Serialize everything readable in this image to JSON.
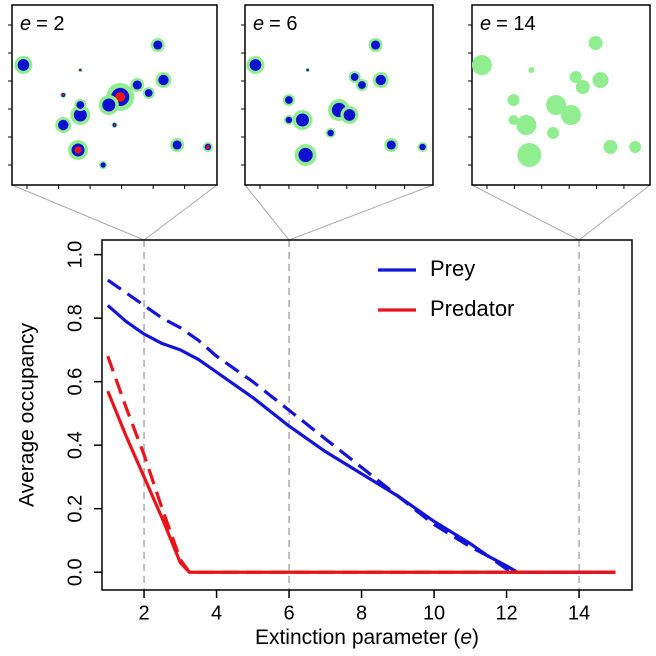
{
  "chart_data": {
    "type": "line",
    "xlabel_parts": [
      "Extinction parameter (",
      "e",
      ")"
    ],
    "ylabel": "Average occupancy",
    "x": [
      1,
      1.5,
      2,
      2.5,
      3,
      3.25,
      3.5,
      4,
      5,
      6,
      7,
      8,
      9,
      10,
      11,
      11.5,
      12,
      12.3,
      13,
      14,
      15
    ],
    "series": [
      {
        "name": "Prey",
        "color": "#1414d8",
        "values": [
          0.84,
          0.79,
          0.75,
          0.72,
          0.7,
          0.685,
          0.67,
          0.63,
          0.55,
          0.46,
          0.38,
          0.31,
          0.24,
          0.16,
          0.09,
          0.05,
          0.02,
          0,
          0,
          0,
          0
        ],
        "dashed_values": [
          0.92,
          0.88,
          0.84,
          0.8,
          0.77,
          0.75,
          0.73,
          0.68,
          0.6,
          0.51,
          0.42,
          0.33,
          0.24,
          0.15,
          0.08,
          0.05,
          0.01,
          0,
          0,
          0,
          0
        ]
      },
      {
        "name": "Predator",
        "color": "#e8141a",
        "values": [
          0.57,
          0.43,
          0.3,
          0.17,
          0.03,
          0,
          0,
          0,
          0,
          0,
          0,
          0,
          0,
          0,
          0,
          0,
          0,
          0,
          0,
          0,
          0
        ],
        "dashed_values": [
          0.68,
          0.52,
          0.37,
          0.2,
          0.04,
          0,
          0,
          0,
          0,
          0,
          0,
          0,
          0,
          0,
          0,
          0,
          0,
          0,
          0,
          0,
          0
        ]
      }
    ],
    "xlim": [
      0.84,
      15.46
    ],
    "xticks": [
      2,
      4,
      6,
      8,
      10,
      12,
      14
    ],
    "ylim": [
      -0.056,
      1.046
    ],
    "yticks": [
      {
        "value": 0,
        "label": "0.0"
      },
      0.2,
      0.4,
      0.6,
      0.8,
      {
        "value": 1,
        "label": "1.0"
      }
    ],
    "reference_lines": [
      2,
      6,
      14
    ],
    "insets": [
      {
        "symbol": "e",
        "text": "= 2"
      },
      {
        "symbol": "e",
        "text": "= 6"
      },
      {
        "symbol": "e",
        "text": "= 14"
      }
    ],
    "legend": "top-right"
  }
}
